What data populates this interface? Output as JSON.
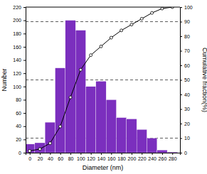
{
  "chart_data": {
    "type": "bar",
    "xlabel": "Diameter (nm)",
    "ylabel": "Number",
    "y2label": "Cumulative fraction(%)",
    "x": [
      0,
      20,
      40,
      60,
      80,
      100,
      120,
      140,
      160,
      180,
      200,
      220,
      240,
      260,
      280
    ],
    "series": [
      {
        "type": "bar",
        "color": "#7B2FBE",
        "values": [
          13,
          15,
          46,
          128,
          200,
          185,
          100,
          108,
          80,
          53,
          51,
          35,
          22,
          4,
          1
        ]
      },
      {
        "type": "line",
        "axis": "y2",
        "color": "black",
        "marker": "circle",
        "line_style": "solid",
        "values": [
          1.2,
          2.5,
          6.5,
          18,
          38,
          57,
          67,
          73,
          79,
          84,
          88,
          92,
          96,
          99,
          100
        ]
      }
    ],
    "y2_reference_lines": [
      10,
      50,
      90
    ],
    "xlim": [
      -8,
      295
    ],
    "xticks": [
      0,
      20,
      40,
      60,
      80,
      100,
      120,
      140,
      160,
      180,
      200,
      220,
      240,
      260,
      280
    ],
    "ylim": [
      0,
      220
    ],
    "yticks": [
      0,
      20,
      40,
      60,
      80,
      100,
      120,
      140,
      160,
      180,
      200,
      220
    ],
    "y2lim": [
      0,
      100
    ],
    "y2ticks": [
      0,
      10,
      20,
      30,
      40,
      50,
      60,
      70,
      80,
      90,
      100
    ],
    "grid": false
  }
}
